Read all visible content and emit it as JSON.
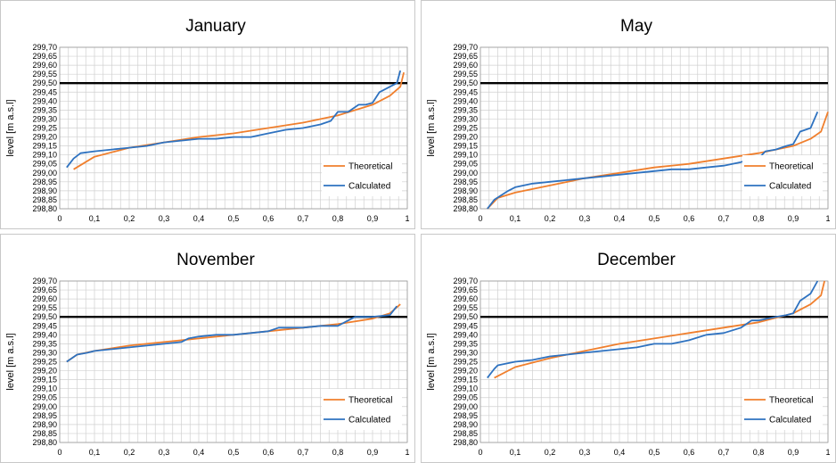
{
  "chart_data": [
    {
      "type": "line",
      "title": "January",
      "ylabel": "level [m a.s.l]",
      "xlabel": "",
      "xlim": [
        0,
        1
      ],
      "ylim": [
        298.8,
        299.7
      ],
      "x_ticks": [
        "0",
        "0,1",
        "0,2",
        "0,3",
        "0,4",
        "0,5",
        "0,6",
        "0,7",
        "0,8",
        "0,9",
        "1"
      ],
      "y_ticks": [
        "298,80",
        "298,85",
        "298,90",
        "298,95",
        "299,00",
        "299,05",
        "299,10",
        "299,15",
        "299,20",
        "299,25",
        "299,30",
        "299,35",
        "299,40",
        "299,45",
        "299,50",
        "299,55",
        "299,60",
        "299,65",
        "299,70"
      ],
      "grid": true,
      "reference_line": 299.5,
      "legend_position": "bottom-right",
      "series": [
        {
          "name": "Theoretical",
          "color": "#f07f2d",
          "points": [
            [
              0.04,
              299.02
            ],
            [
              0.1,
              299.09
            ],
            [
              0.2,
              299.14
            ],
            [
              0.3,
              299.17
            ],
            [
              0.4,
              299.2
            ],
            [
              0.5,
              299.22
            ],
            [
              0.6,
              299.25
            ],
            [
              0.7,
              299.28
            ],
            [
              0.8,
              299.32
            ],
            [
              0.9,
              299.38
            ],
            [
              0.95,
              299.43
            ],
            [
              0.98,
              299.48
            ],
            [
              0.99,
              299.56
            ]
          ]
        },
        {
          "name": "Calculated",
          "color": "#2e72c0",
          "points": [
            [
              0.02,
              299.03
            ],
            [
              0.04,
              299.08
            ],
            [
              0.06,
              299.11
            ],
            [
              0.1,
              299.12
            ],
            [
              0.15,
              299.13
            ],
            [
              0.2,
              299.14
            ],
            [
              0.25,
              299.15
            ],
            [
              0.3,
              299.17
            ],
            [
              0.35,
              299.18
            ],
            [
              0.4,
              299.19
            ],
            [
              0.45,
              299.19
            ],
            [
              0.5,
              299.2
            ],
            [
              0.55,
              299.2
            ],
            [
              0.6,
              299.22
            ],
            [
              0.65,
              299.24
            ],
            [
              0.7,
              299.25
            ],
            [
              0.75,
              299.27
            ],
            [
              0.78,
              299.29
            ],
            [
              0.8,
              299.34
            ],
            [
              0.83,
              299.34
            ],
            [
              0.86,
              299.38
            ],
            [
              0.88,
              299.38
            ],
            [
              0.9,
              299.39
            ],
            [
              0.92,
              299.45
            ],
            [
              0.95,
              299.48
            ],
            [
              0.97,
              299.5
            ],
            [
              0.98,
              299.57
            ]
          ]
        }
      ]
    },
    {
      "type": "line",
      "title": "May",
      "ylabel": "level [m a.s.l]",
      "xlabel": "",
      "xlim": [
        0,
        1
      ],
      "ylim": [
        298.8,
        299.7
      ],
      "x_ticks": [
        "0",
        "0,1",
        "0,2",
        "0,3",
        "0,4",
        "0,5",
        "0,6",
        "0,7",
        "0,8",
        "0,9",
        "1"
      ],
      "y_ticks": [
        "298,80",
        "298,85",
        "298,90",
        "298,95",
        "299,00",
        "299,05",
        "299,10",
        "299,15",
        "299,20",
        "299,25",
        "299,30",
        "299,35",
        "299,40",
        "299,45",
        "299,50",
        "299,55",
        "299,60",
        "299,65",
        "299,70"
      ],
      "grid": true,
      "reference_line": 299.5,
      "legend_position": "bottom-right",
      "series": [
        {
          "name": "Theoretical",
          "color": "#f07f2d",
          "points": [
            [
              0.02,
              298.8
            ],
            [
              0.05,
              298.86
            ],
            [
              0.1,
              298.89
            ],
            [
              0.2,
              298.93
            ],
            [
              0.3,
              298.97
            ],
            [
              0.4,
              299.0
            ],
            [
              0.5,
              299.03
            ],
            [
              0.6,
              299.05
            ],
            [
              0.7,
              299.08
            ],
            [
              0.8,
              299.11
            ],
            [
              0.9,
              299.15
            ],
            [
              0.95,
              299.19
            ],
            [
              0.98,
              299.23
            ],
            [
              1.0,
              299.34
            ]
          ]
        },
        {
          "name": "Calculated",
          "color": "#2e72c0",
          "points": [
            [
              0.02,
              298.8
            ],
            [
              0.04,
              298.85
            ],
            [
              0.08,
              298.9
            ],
            [
              0.1,
              298.92
            ],
            [
              0.15,
              298.94
            ],
            [
              0.2,
              298.95
            ],
            [
              0.25,
              298.96
            ],
            [
              0.3,
              298.97
            ],
            [
              0.35,
              298.98
            ],
            [
              0.4,
              298.99
            ],
            [
              0.45,
              299.0
            ],
            [
              0.5,
              299.01
            ],
            [
              0.55,
              299.02
            ],
            [
              0.6,
              299.02
            ],
            [
              0.65,
              299.03
            ],
            [
              0.7,
              299.04
            ],
            [
              0.75,
              299.06
            ],
            [
              0.78,
              299.08
            ],
            [
              0.8,
              299.08
            ],
            [
              0.82,
              299.12
            ],
            [
              0.85,
              299.13
            ],
            [
              0.88,
              299.15
            ],
            [
              0.9,
              299.16
            ],
            [
              0.92,
              299.23
            ],
            [
              0.95,
              299.25
            ],
            [
              0.97,
              299.34
            ]
          ]
        }
      ]
    },
    {
      "type": "line",
      "title": "November",
      "ylabel": "level [m a.s.l]",
      "xlabel": "",
      "xlim": [
        0,
        1
      ],
      "ylim": [
        298.8,
        299.7
      ],
      "x_ticks": [
        "0",
        "0,1",
        "0,2",
        "0,3",
        "0,4",
        "0,5",
        "0,6",
        "0,7",
        "0,8",
        "0,9",
        "1"
      ],
      "y_ticks": [
        "298,80",
        "298,85",
        "298,90",
        "298,95",
        "299,00",
        "299,05",
        "299,10",
        "299,15",
        "299,20",
        "299,25",
        "299,30",
        "299,35",
        "299,40",
        "299,45",
        "299,50",
        "299,55",
        "299,60",
        "299,65",
        "299,70"
      ],
      "grid": true,
      "reference_line": 299.5,
      "legend_position": "bottom-right",
      "series": [
        {
          "name": "Theoretical",
          "color": "#f07f2d",
          "points": [
            [
              0.02,
              299.25
            ],
            [
              0.05,
              299.29
            ],
            [
              0.1,
              299.31
            ],
            [
              0.2,
              299.34
            ],
            [
              0.3,
              299.36
            ],
            [
              0.4,
              299.38
            ],
            [
              0.5,
              299.4
            ],
            [
              0.6,
              299.42
            ],
            [
              0.7,
              299.44
            ],
            [
              0.8,
              299.46
            ],
            [
              0.9,
              299.49
            ],
            [
              0.95,
              299.52
            ],
            [
              0.98,
              299.57
            ]
          ]
        },
        {
          "name": "Calculated",
          "color": "#2e72c0",
          "points": [
            [
              0.02,
              299.25
            ],
            [
              0.05,
              299.29
            ],
            [
              0.08,
              299.3
            ],
            [
              0.1,
              299.31
            ],
            [
              0.15,
              299.32
            ],
            [
              0.2,
              299.33
            ],
            [
              0.25,
              299.34
            ],
            [
              0.3,
              299.35
            ],
            [
              0.35,
              299.36
            ],
            [
              0.37,
              299.38
            ],
            [
              0.4,
              299.39
            ],
            [
              0.45,
              299.4
            ],
            [
              0.5,
              299.4
            ],
            [
              0.55,
              299.41
            ],
            [
              0.6,
              299.42
            ],
            [
              0.63,
              299.44
            ],
            [
              0.7,
              299.44
            ],
            [
              0.75,
              299.45
            ],
            [
              0.8,
              299.45
            ],
            [
              0.83,
              299.48
            ],
            [
              0.85,
              299.5
            ],
            [
              0.9,
              299.5
            ],
            [
              0.95,
              299.51
            ],
            [
              0.97,
              299.56
            ]
          ]
        }
      ]
    },
    {
      "type": "line",
      "title": "December",
      "ylabel": "level [m a.s.l]",
      "xlabel": "",
      "xlim": [
        0,
        1
      ],
      "ylim": [
        298.8,
        299.7
      ],
      "x_ticks": [
        "0",
        "0,1",
        "0,2",
        "0,3",
        "0,4",
        "0,5",
        "0,6",
        "0,7",
        "0,8",
        "0,9",
        "1"
      ],
      "y_ticks": [
        "298,80",
        "298,85",
        "298,90",
        "298,95",
        "299,00",
        "299,05",
        "299,10",
        "299,15",
        "299,20",
        "299,25",
        "299,30",
        "299,35",
        "299,40",
        "299,45",
        "299,50",
        "299,55",
        "299,60",
        "299,65",
        "299,70"
      ],
      "grid": true,
      "reference_line": 299.5,
      "legend_position": "bottom-right",
      "series": [
        {
          "name": "Theoretical",
          "color": "#f07f2d",
          "points": [
            [
              0.04,
              299.16
            ],
            [
              0.1,
              299.22
            ],
            [
              0.2,
              299.27
            ],
            [
              0.3,
              299.31
            ],
            [
              0.4,
              299.35
            ],
            [
              0.5,
              299.38
            ],
            [
              0.6,
              299.41
            ],
            [
              0.7,
              299.44
            ],
            [
              0.8,
              299.47
            ],
            [
              0.9,
              299.52
            ],
            [
              0.95,
              299.57
            ],
            [
              0.98,
              299.62
            ],
            [
              0.99,
              299.7
            ]
          ]
        },
        {
          "name": "Calculated",
          "color": "#2e72c0",
          "points": [
            [
              0.02,
              299.16
            ],
            [
              0.04,
              299.21
            ],
            [
              0.05,
              299.23
            ],
            [
              0.1,
              299.25
            ],
            [
              0.15,
              299.26
            ],
            [
              0.2,
              299.28
            ],
            [
              0.25,
              299.29
            ],
            [
              0.3,
              299.3
            ],
            [
              0.35,
              299.31
            ],
            [
              0.4,
              299.32
            ],
            [
              0.45,
              299.33
            ],
            [
              0.5,
              299.35
            ],
            [
              0.55,
              299.35
            ],
            [
              0.6,
              299.37
            ],
            [
              0.65,
              299.4
            ],
            [
              0.7,
              299.41
            ],
            [
              0.75,
              299.44
            ],
            [
              0.78,
              299.48
            ],
            [
              0.8,
              299.48
            ],
            [
              0.85,
              299.5
            ],
            [
              0.88,
              299.51
            ],
            [
              0.9,
              299.52
            ],
            [
              0.92,
              299.59
            ],
            [
              0.95,
              299.63
            ],
            [
              0.97,
              299.7
            ]
          ]
        }
      ]
    }
  ]
}
